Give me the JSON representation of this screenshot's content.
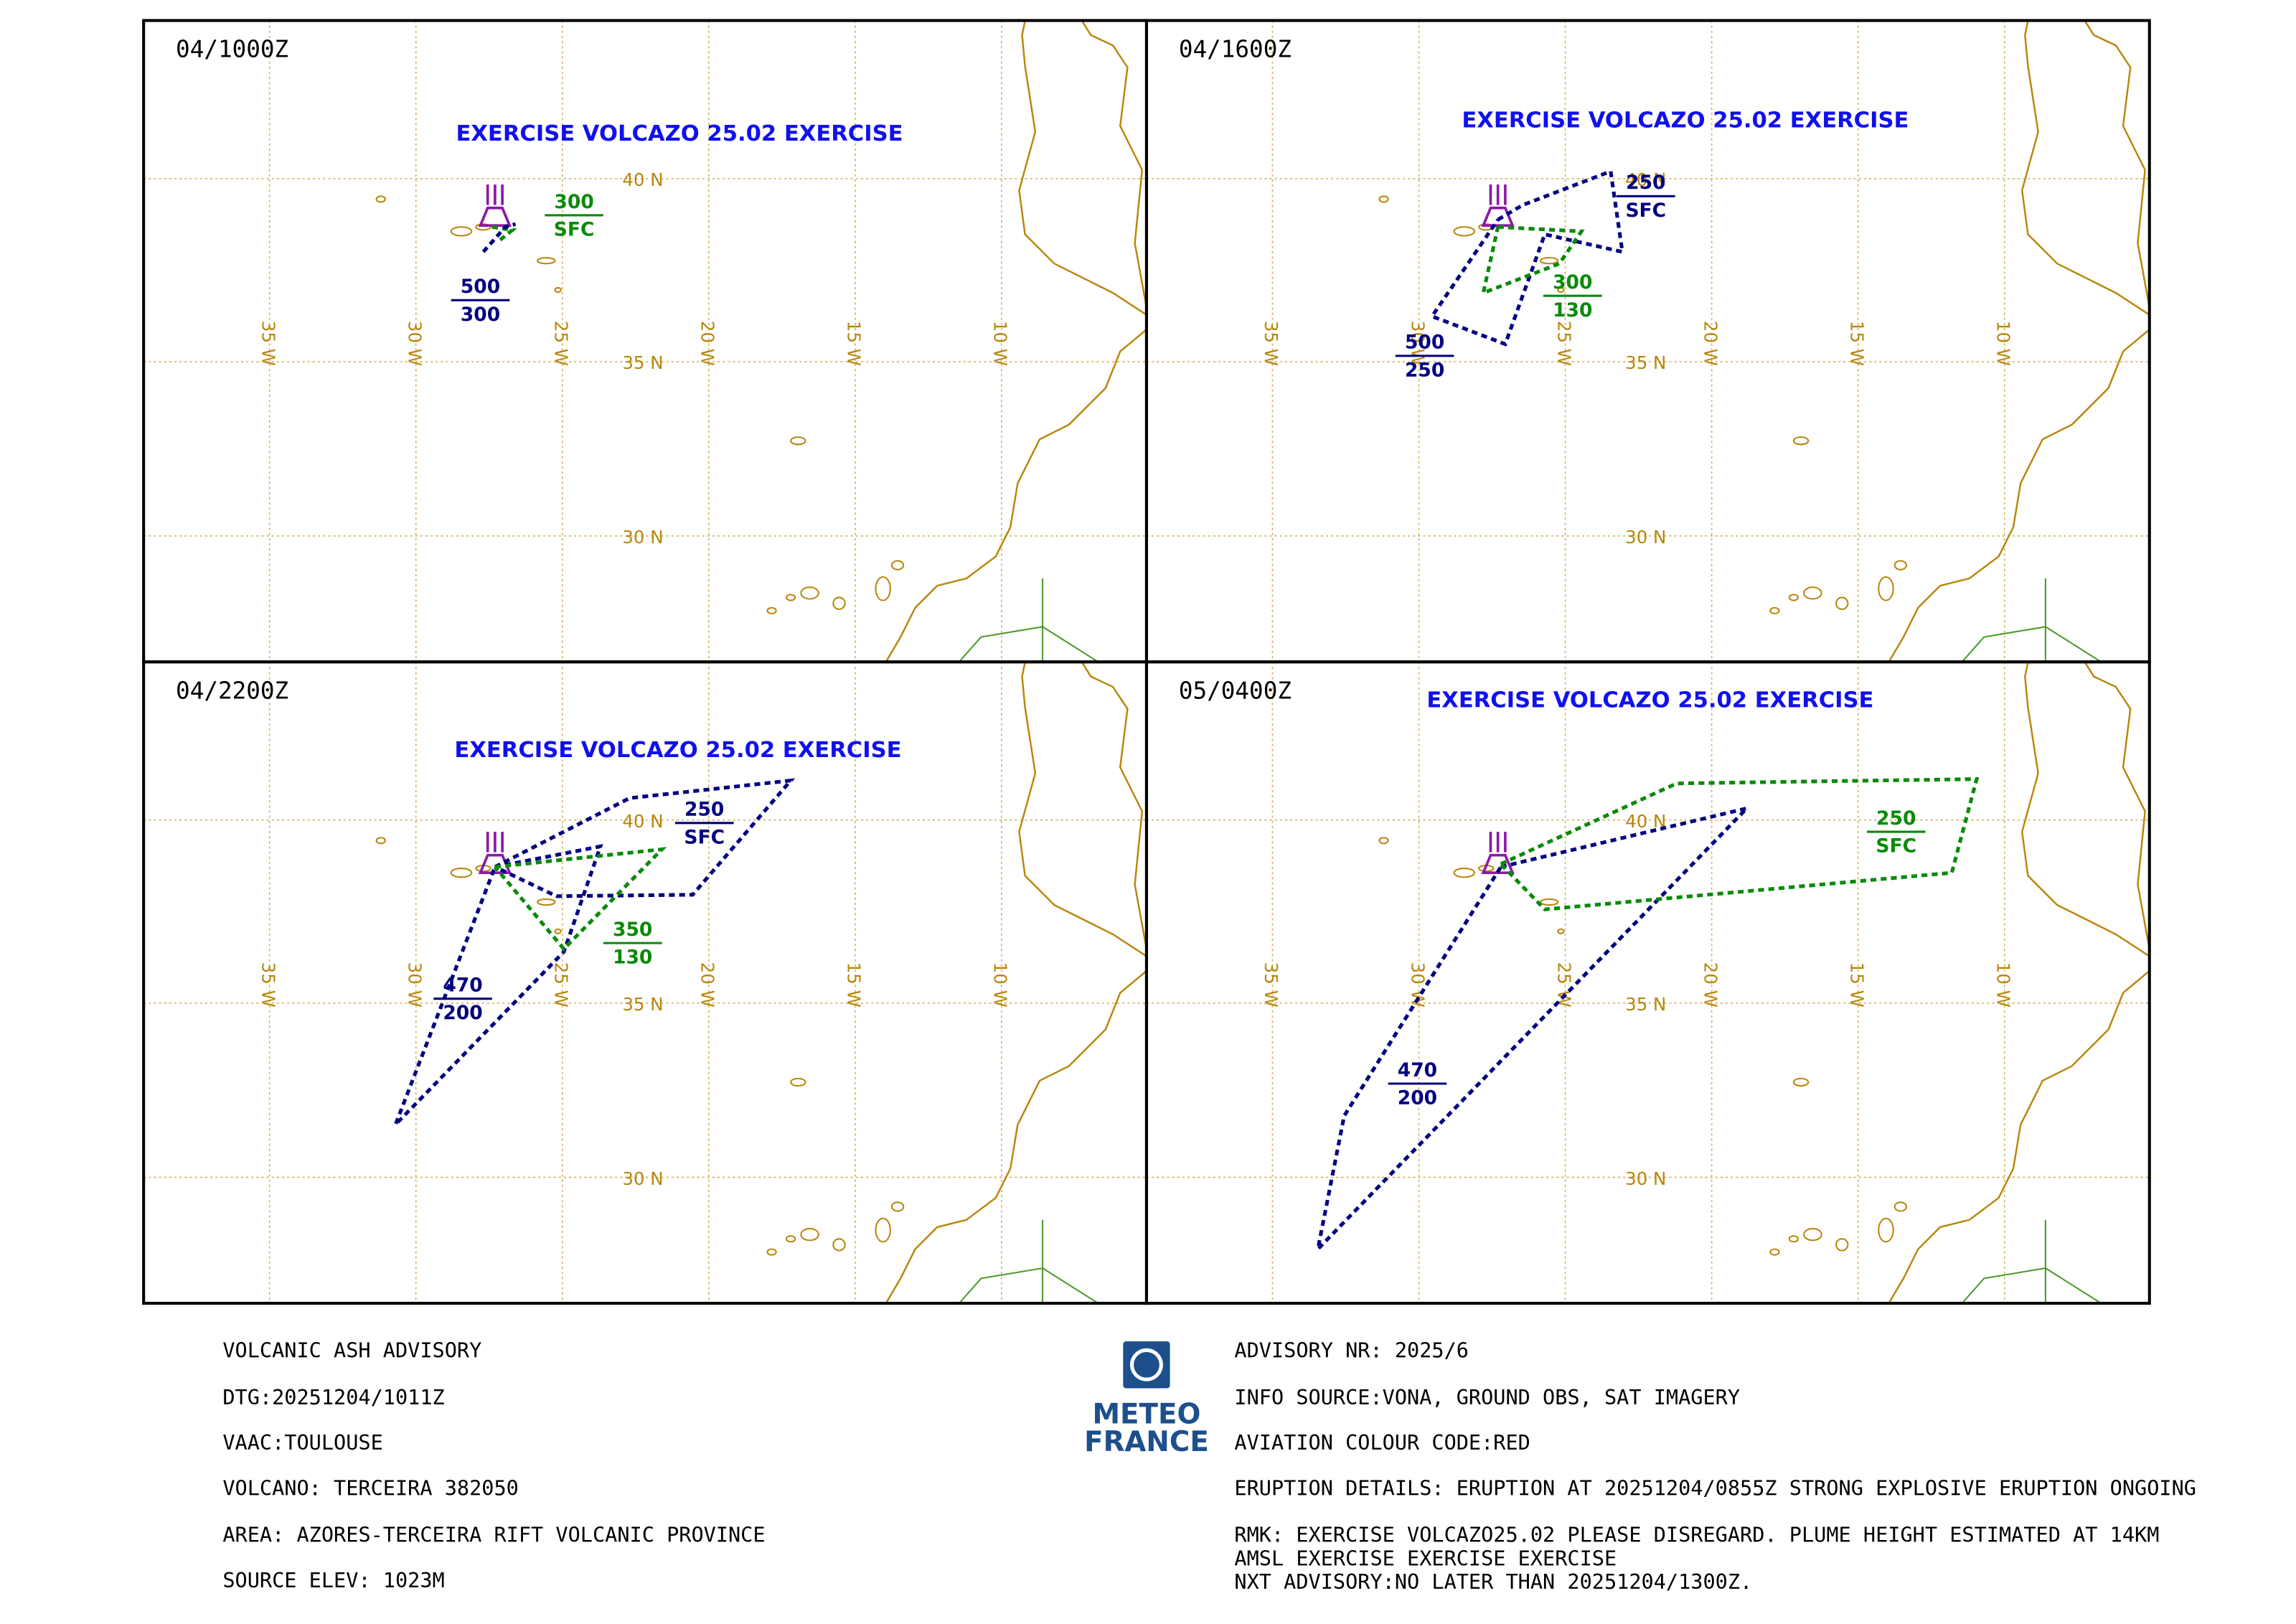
{
  "panels": [
    {
      "time": "04/1000Z",
      "title": "EXERCISE VOLCAZO 25.02 EXERCISE",
      "levels": [
        {
          "top": "300",
          "base": "SFC",
          "color": "#0a8a0a"
        },
        {
          "top": "500",
          "base": "300",
          "color": "#000080"
        }
      ]
    },
    {
      "time": "04/1600Z",
      "title": "EXERCISE VOLCAZO 25.02 EXERCISE",
      "levels": [
        {
          "top": "250",
          "base": "SFC",
          "color": "#000080"
        },
        {
          "top": "300",
          "base": "130",
          "color": "#0a8a0a"
        },
        {
          "top": "500",
          "base": "250",
          "color": "#000080"
        }
      ]
    },
    {
      "time": "04/2200Z",
      "title": "EXERCISE VOLCAZO 25.02 EXERCISE",
      "levels": [
        {
          "top": "250",
          "base": "SFC",
          "color": "#000080"
        },
        {
          "top": "350",
          "base": "130",
          "color": "#0a8a0a"
        },
        {
          "top": "470",
          "base": "200",
          "color": "#000080"
        }
      ]
    },
    {
      "time": "05/0400Z",
      "title": "EXERCISE VOLCAZO 25.02 EXERCISE",
      "levels": [
        {
          "top": "250",
          "base": "SFC",
          "color": "#0a8a0a"
        },
        {
          "top": "470",
          "base": "200",
          "color": "#000080"
        }
      ]
    }
  ],
  "map": {
    "lon_labels": [
      "35 W",
      "30 W",
      "25 W",
      "20 W",
      "15 W",
      "10 W"
    ],
    "lat_labels": [
      "40 N",
      "35 N",
      "30 N"
    ]
  },
  "advisory": {
    "left": [
      "VOLCANIC ASH ADVISORY",
      "DTG:20251204/1011Z",
      "VAAC:TOULOUSE",
      "VOLCANO: TERCEIRA 382050",
      "AREA: AZORES-TERCEIRA RIFT VOLCANIC PROVINCE",
      "SOURCE ELEV: 1023M"
    ],
    "right": [
      "ADVISORY NR: 2025/6",
      "INFO SOURCE:VONA, GROUND OBS, SAT IMAGERY",
      "AVIATION COLOUR CODE:RED",
      "ERUPTION DETAILS: ERUPTION AT 20251204/0855Z STRONG EXPLOSIVE ERUPTION ONGOING",
      "RMK: EXERCISE VOLCAZO25.02 PLEASE DISREGARD. PLUME HEIGHT ESTIMATED AT 14KM",
      "AMSL EXERCISE EXERCISE EXERCISE",
      "NXT ADVISORY:NO LATER THAN 20251204/1300Z."
    ]
  },
  "logo": {
    "line1": "METEO",
    "line2": "FRANCE"
  }
}
